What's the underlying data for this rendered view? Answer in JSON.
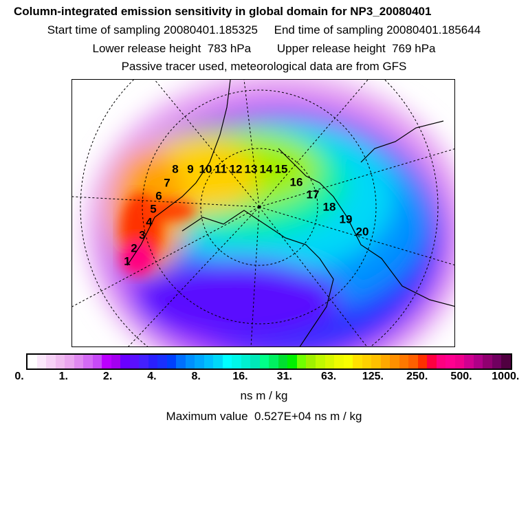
{
  "header": {
    "title": "Column-integrated emission sensitivity in global domain for NP3_20080401",
    "line2": "Start time of sampling 20080401.185325     End time of sampling 20080401.185644",
    "line3": "Lower release height  783 hPa        Upper release height  769 hPa",
    "line4": "Passive tracer used, meteorological data are from GFS"
  },
  "map": {
    "trajectory_labels": [
      "1",
      "2",
      "3",
      "4",
      "5",
      "6",
      "7",
      "8",
      "9",
      "10",
      "11",
      "12",
      "13",
      "14",
      "15",
      "16",
      "17",
      "18",
      "19",
      "20"
    ]
  },
  "colorbar": {
    "ticks": [
      "0.",
      "1.",
      "2.",
      "4.",
      "8.",
      "16.",
      "31.",
      "63.",
      "125.",
      "250.",
      "500.",
      "1000."
    ],
    "colors": [
      "#ffffff",
      "#fbe8fb",
      "#f6d2f6",
      "#f0bcf0",
      "#eaa6ef",
      "#e089f0",
      "#d46af4",
      "#c74af7",
      "#bb00ff",
      "#a400f0",
      "#6a00ff",
      "#5a10ff",
      "#4420ff",
      "#2a20ff",
      "#1a30ff",
      "#0040ff",
      "#0070ff",
      "#0090ff",
      "#00a8ff",
      "#00c0ff",
      "#00d8f8",
      "#00ffff",
      "#00f8e8",
      "#00f0d0",
      "#00e8b8",
      "#00ff88",
      "#00f060",
      "#00e030",
      "#00f000",
      "#70ff00",
      "#a0f000",
      "#c0f800",
      "#d8f800",
      "#eefc00",
      "#f8ff00",
      "#ffe000",
      "#ffd000",
      "#ffc000",
      "#ffa800",
      "#ff9000",
      "#ff7800",
      "#ff6000",
      "#ff3000",
      "#ff0040",
      "#ff0080",
      "#ff0090",
      "#f0008c",
      "#d00090",
      "#b00088",
      "#900070",
      "#700060",
      "#500040"
    ],
    "unit": "ns m / kg",
    "max_value_text": "Maximum value  0.527E+04 ns m / kg"
  }
}
